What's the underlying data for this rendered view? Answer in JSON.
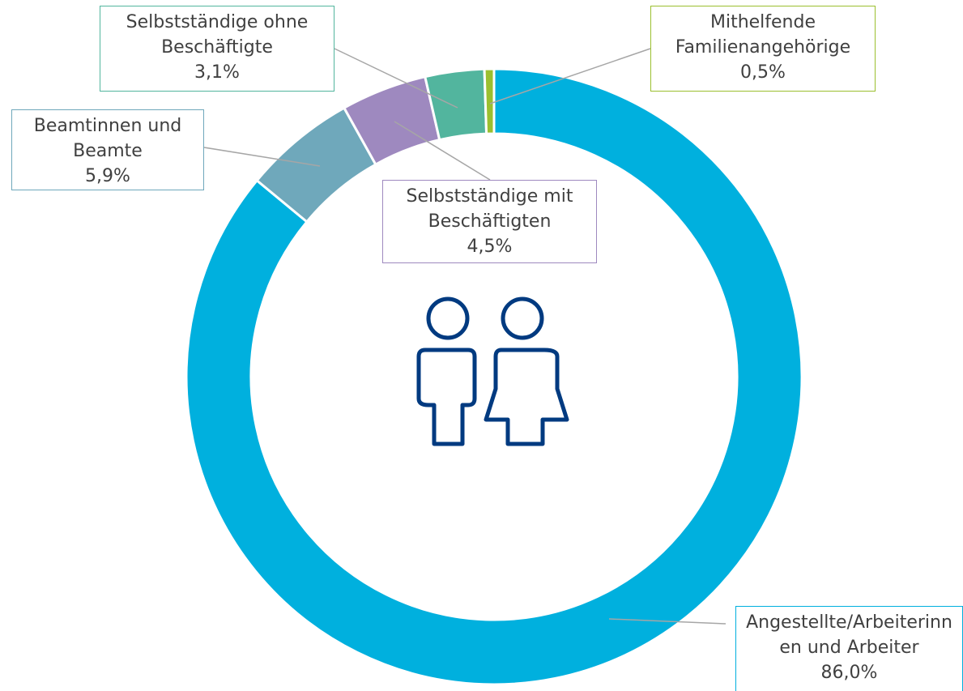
{
  "chart_data": {
    "type": "donut",
    "categories": [
      "Angestellte/Arbeiterinnen und Arbeiter",
      "Beamtinnen und Beamte",
      "Selbstständige mit Beschäftigten",
      "Selbstständige ohne Beschäftigte",
      "Mithelfende Familienangehörige"
    ],
    "values": [
      86.0,
      5.9,
      4.5,
      3.1,
      0.5
    ],
    "value_labels": [
      "86,0%",
      "5,9%",
      "4,5%",
      "3,1%",
      "0,5%"
    ],
    "colors": [
      "#00b0de",
      "#6fa8bb",
      "#9e89bf",
      "#52b59e",
      "#9bbf2f"
    ]
  }
}
